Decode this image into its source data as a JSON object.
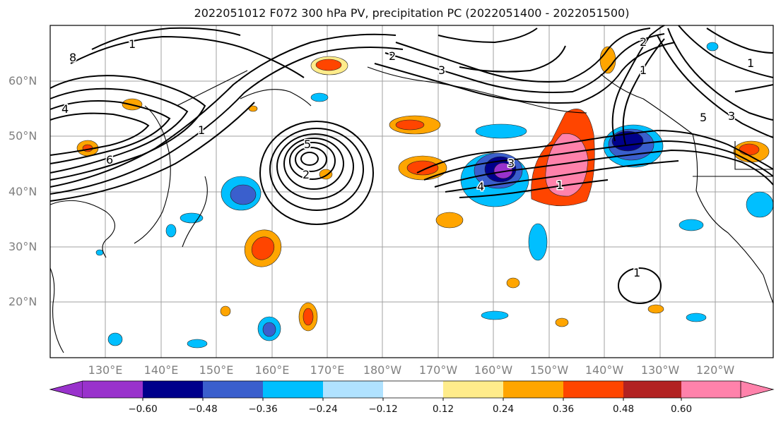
{
  "title": "2022051012 F072 300 hPa PV, precipitation PC (2022051400 - 2022051500)",
  "map": {
    "lat_labels": [
      "60°N",
      "50°N",
      "40°N",
      "30°N",
      "20°N"
    ],
    "lon_labels": [
      "130°E",
      "140°E",
      "150°E",
      "160°E",
      "170°E",
      "180°W",
      "170°W",
      "160°W",
      "150°W",
      "140°W",
      "130°W",
      "120°W"
    ],
    "contour_labels": [
      "1",
      "2",
      "3",
      "4",
      "5",
      "6",
      "8"
    ]
  },
  "colorbar": {
    "tick_labels": [
      "−0.60",
      "−0.48",
      "−0.36",
      "−0.24",
      "−0.12",
      "0.12",
      "0.24",
      "0.36",
      "0.48",
      "0.60"
    ],
    "colors": [
      "#9932cc",
      "#00008b",
      "#3a5fcd",
      "#00bfff",
      "#b0e2ff",
      "#ffffff",
      "#ffec8b",
      "#ffa500",
      "#ff4500",
      "#b22222",
      "#ff82ab"
    ]
  }
}
